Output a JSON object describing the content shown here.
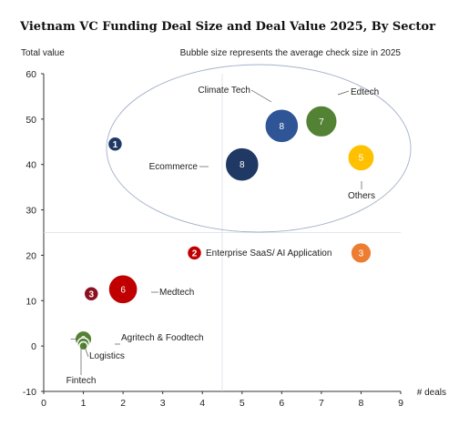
{
  "chart_data": {
    "type": "bubble",
    "title": "Vietnam VC Funding Deal Size and Deal Value 2025, By Sector",
    "ylabel": "Total value",
    "xlabel": "# deals",
    "note": "Bubble size represents the average check size in 2025",
    "xlim": [
      0,
      9
    ],
    "ylim": [
      -10,
      60
    ],
    "xticks": [
      "0",
      "1",
      "2",
      "3",
      "4",
      "5",
      "6",
      "7",
      "8",
      "9"
    ],
    "yticks": [
      "-10",
      "0",
      "10",
      "20",
      "30",
      "40",
      "50",
      "60"
    ],
    "reference_lines": {
      "x": 4.5,
      "y": 25
    },
    "points": [
      {
        "label": "Climate Tech",
        "x": 6,
        "y": 48.5,
        "size": 8,
        "size_label": "8",
        "color": "#2f5597"
      },
      {
        "label": "Edtech",
        "x": 7,
        "y": 49.5,
        "size": 7,
        "size_label": "7",
        "color": "#548235"
      },
      {
        "label": "Ecommerce",
        "x": 5,
        "y": 40,
        "size": 8,
        "size_label": "8",
        "color": "#203864"
      },
      {
        "label": "Others",
        "x": 8,
        "y": 41.5,
        "size": 5,
        "size_label": "5",
        "color": "#ffc000"
      },
      {
        "label": "Enterprise SaaS/ AI Application",
        "x": 8,
        "y": 20.5,
        "size": 3,
        "size_label": "3",
        "color": "#ed7d31"
      },
      {
        "label": "Medtech",
        "x": 2,
        "y": 12.5,
        "size": 6,
        "size_label": "6",
        "color": "#c00000"
      },
      {
        "label": "Agritech & Foodtech",
        "x": 1,
        "y": 1.5,
        "size": 2,
        "size_label": "2",
        "color": "#548235"
      },
      {
        "label": "Logistics",
        "x": 1,
        "y": 0.5,
        "size": 1,
        "size_label": "",
        "color": "#548235"
      },
      {
        "label": "Fintech",
        "x": 1,
        "y": 0,
        "size": 0.5,
        "size_label": "",
        "color": "#548235"
      }
    ],
    "cluster_markers": [
      {
        "text": "1",
        "x": 1.8,
        "y": 44.5,
        "color": "#203864"
      },
      {
        "text": "2",
        "x": 3.8,
        "y": 20.5,
        "color": "#c00000"
      },
      {
        "text": "3",
        "x": 1.2,
        "y": 11.5,
        "color": "#8b1020"
      }
    ],
    "grid": false
  }
}
